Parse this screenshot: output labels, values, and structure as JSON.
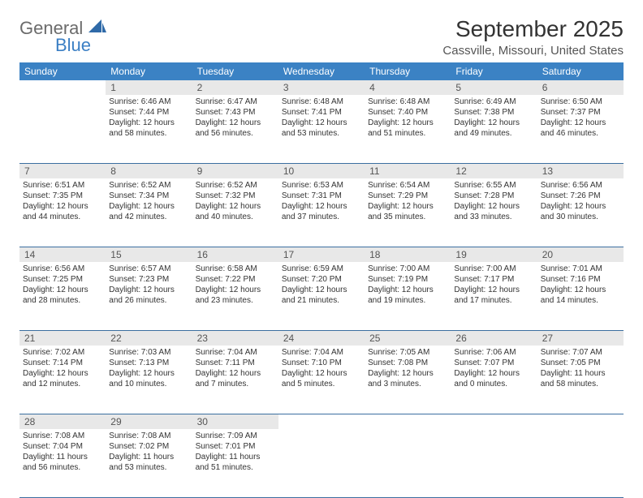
{
  "logo": {
    "text1": "General",
    "text2": "Blue"
  },
  "title": "September 2025",
  "location": "Cassville, Missouri, United States",
  "days": [
    "Sunday",
    "Monday",
    "Tuesday",
    "Wednesday",
    "Thursday",
    "Friday",
    "Saturday"
  ],
  "colors": {
    "header_bg": "#3b82c4",
    "header_text": "#ffffff",
    "daynum_bg": "#e8e8e8",
    "border": "#3b6fa0",
    "logo_gray": "#6b6b6b",
    "logo_blue": "#3b7fc4"
  },
  "weeks": [
    [
      null,
      {
        "n": "1",
        "sr": "6:46 AM",
        "ss": "7:44 PM",
        "dl": "12 hours and 58 minutes."
      },
      {
        "n": "2",
        "sr": "6:47 AM",
        "ss": "7:43 PM",
        "dl": "12 hours and 56 minutes."
      },
      {
        "n": "3",
        "sr": "6:48 AM",
        "ss": "7:41 PM",
        "dl": "12 hours and 53 minutes."
      },
      {
        "n": "4",
        "sr": "6:48 AM",
        "ss": "7:40 PM",
        "dl": "12 hours and 51 minutes."
      },
      {
        "n": "5",
        "sr": "6:49 AM",
        "ss": "7:38 PM",
        "dl": "12 hours and 49 minutes."
      },
      {
        "n": "6",
        "sr": "6:50 AM",
        "ss": "7:37 PM",
        "dl": "12 hours and 46 minutes."
      }
    ],
    [
      {
        "n": "7",
        "sr": "6:51 AM",
        "ss": "7:35 PM",
        "dl": "12 hours and 44 minutes."
      },
      {
        "n": "8",
        "sr": "6:52 AM",
        "ss": "7:34 PM",
        "dl": "12 hours and 42 minutes."
      },
      {
        "n": "9",
        "sr": "6:52 AM",
        "ss": "7:32 PM",
        "dl": "12 hours and 40 minutes."
      },
      {
        "n": "10",
        "sr": "6:53 AM",
        "ss": "7:31 PM",
        "dl": "12 hours and 37 minutes."
      },
      {
        "n": "11",
        "sr": "6:54 AM",
        "ss": "7:29 PM",
        "dl": "12 hours and 35 minutes."
      },
      {
        "n": "12",
        "sr": "6:55 AM",
        "ss": "7:28 PM",
        "dl": "12 hours and 33 minutes."
      },
      {
        "n": "13",
        "sr": "6:56 AM",
        "ss": "7:26 PM",
        "dl": "12 hours and 30 minutes."
      }
    ],
    [
      {
        "n": "14",
        "sr": "6:56 AM",
        "ss": "7:25 PM",
        "dl": "12 hours and 28 minutes."
      },
      {
        "n": "15",
        "sr": "6:57 AM",
        "ss": "7:23 PM",
        "dl": "12 hours and 26 minutes."
      },
      {
        "n": "16",
        "sr": "6:58 AM",
        "ss": "7:22 PM",
        "dl": "12 hours and 23 minutes."
      },
      {
        "n": "17",
        "sr": "6:59 AM",
        "ss": "7:20 PM",
        "dl": "12 hours and 21 minutes."
      },
      {
        "n": "18",
        "sr": "7:00 AM",
        "ss": "7:19 PM",
        "dl": "12 hours and 19 minutes."
      },
      {
        "n": "19",
        "sr": "7:00 AM",
        "ss": "7:17 PM",
        "dl": "12 hours and 17 minutes."
      },
      {
        "n": "20",
        "sr": "7:01 AM",
        "ss": "7:16 PM",
        "dl": "12 hours and 14 minutes."
      }
    ],
    [
      {
        "n": "21",
        "sr": "7:02 AM",
        "ss": "7:14 PM",
        "dl": "12 hours and 12 minutes."
      },
      {
        "n": "22",
        "sr": "7:03 AM",
        "ss": "7:13 PM",
        "dl": "12 hours and 10 minutes."
      },
      {
        "n": "23",
        "sr": "7:04 AM",
        "ss": "7:11 PM",
        "dl": "12 hours and 7 minutes."
      },
      {
        "n": "24",
        "sr": "7:04 AM",
        "ss": "7:10 PM",
        "dl": "12 hours and 5 minutes."
      },
      {
        "n": "25",
        "sr": "7:05 AM",
        "ss": "7:08 PM",
        "dl": "12 hours and 3 minutes."
      },
      {
        "n": "26",
        "sr": "7:06 AM",
        "ss": "7:07 PM",
        "dl": "12 hours and 0 minutes."
      },
      {
        "n": "27",
        "sr": "7:07 AM",
        "ss": "7:05 PM",
        "dl": "11 hours and 58 minutes."
      }
    ],
    [
      {
        "n": "28",
        "sr": "7:08 AM",
        "ss": "7:04 PM",
        "dl": "11 hours and 56 minutes."
      },
      {
        "n": "29",
        "sr": "7:08 AM",
        "ss": "7:02 PM",
        "dl": "11 hours and 53 minutes."
      },
      {
        "n": "30",
        "sr": "7:09 AM",
        "ss": "7:01 PM",
        "dl": "11 hours and 51 minutes."
      },
      null,
      null,
      null,
      null
    ]
  ],
  "labels": {
    "sunrise": "Sunrise:",
    "sunset": "Sunset:",
    "daylight": "Daylight:"
  }
}
